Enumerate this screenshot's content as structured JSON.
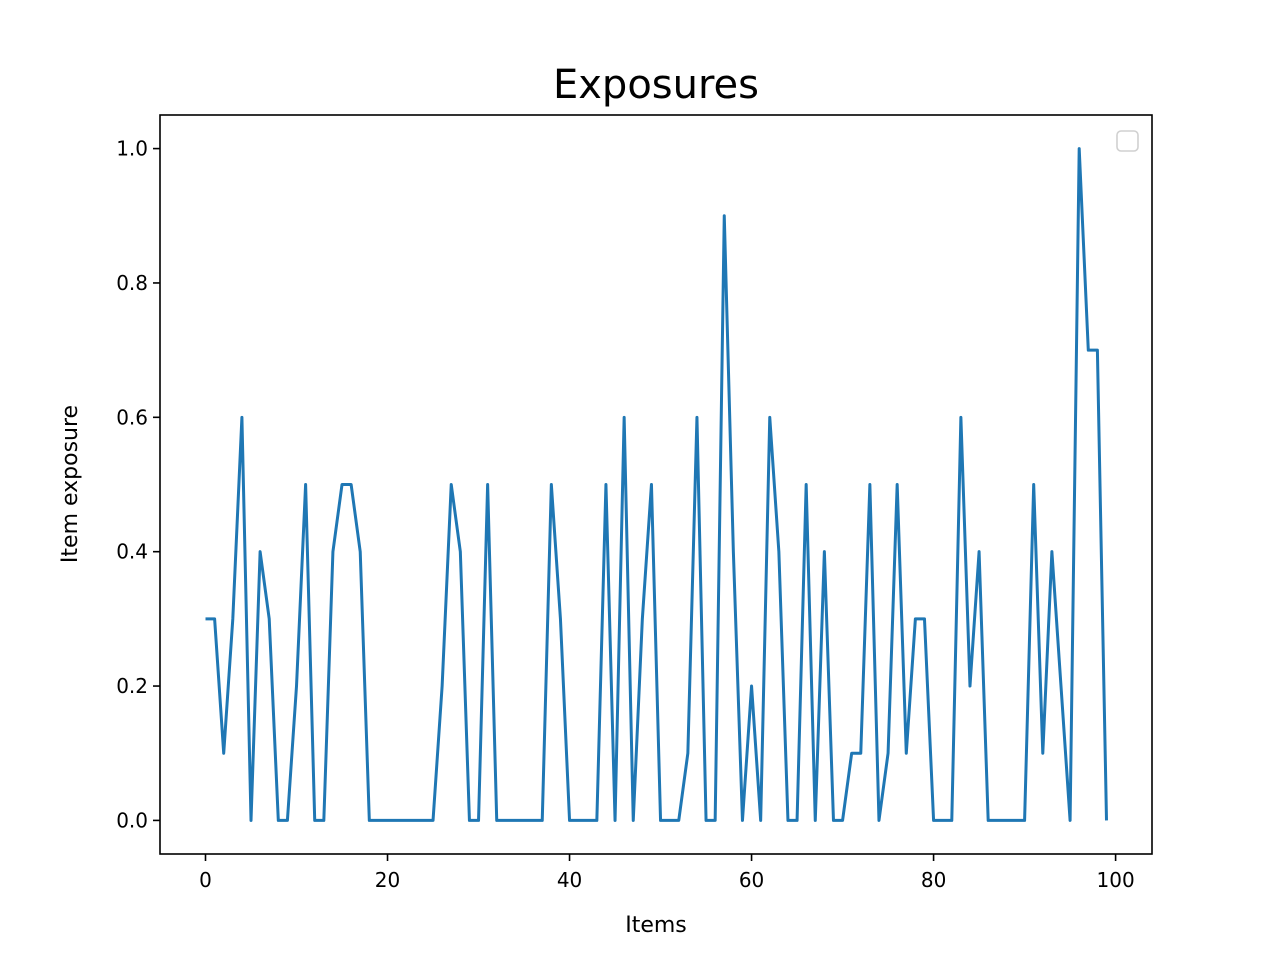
{
  "chart_data": {
    "type": "line",
    "title": "Exposures",
    "xlabel": "Items",
    "ylabel": "Item exposure",
    "xlim": [
      -5,
      104
    ],
    "ylim": [
      -0.05,
      1.05
    ],
    "xticks": [
      0,
      20,
      40,
      60,
      80,
      100
    ],
    "yticks": [
      0.0,
      0.2,
      0.4,
      0.6,
      0.8,
      1.0
    ],
    "xtick_labels": [
      "0",
      "20",
      "40",
      "60",
      "80",
      "100"
    ],
    "ytick_labels": [
      "0.0",
      "0.2",
      "0.4",
      "0.6",
      "0.8",
      "1.0"
    ],
    "grid": false,
    "legend": "upper-right",
    "colors": {
      "line": "#1f77b4"
    },
    "series": [
      {
        "x": [
          0,
          1,
          2,
          3,
          4,
          5,
          6,
          7,
          8,
          9,
          10,
          11,
          12,
          13,
          14,
          15,
          16,
          17,
          18,
          19,
          20,
          21,
          22,
          23,
          24,
          25,
          26,
          27,
          28,
          29,
          30,
          31,
          32,
          33,
          34,
          35,
          36,
          37,
          38,
          39,
          40,
          41,
          42,
          43,
          44,
          45,
          46,
          47,
          48,
          49,
          50,
          51,
          52,
          53,
          54,
          55,
          56,
          57,
          58,
          59,
          60,
          61,
          62,
          63,
          64,
          65,
          66,
          67,
          68,
          69,
          70,
          71,
          72,
          73,
          74,
          75,
          76,
          77,
          78,
          79,
          80,
          81,
          82,
          83,
          84,
          85,
          86,
          87,
          88,
          89,
          90,
          91,
          92,
          93,
          94,
          95,
          96,
          97,
          98,
          99
        ],
        "values": [
          0.3,
          0.3,
          0.1,
          0.3,
          0.6,
          0.0,
          0.4,
          0.3,
          0.0,
          0.0,
          0.2,
          0.5,
          0.0,
          0.0,
          0.4,
          0.5,
          0.5,
          0.4,
          0.0,
          0.0,
          0.0,
          0.0,
          0.0,
          0.0,
          0.0,
          0.0,
          0.2,
          0.5,
          0.4,
          0.0,
          0.0,
          0.5,
          0.0,
          0.0,
          0.0,
          0.0,
          0.0,
          0.0,
          0.5,
          0.3,
          0.0,
          0.0,
          0.0,
          0.0,
          0.5,
          0.0,
          0.6,
          0.0,
          0.3,
          0.5,
          0.0,
          0.0,
          0.0,
          0.1,
          0.6,
          0.0,
          0.0,
          0.9,
          0.4,
          0.0,
          0.2,
          0.0,
          0.6,
          0.4,
          0.0,
          0.0,
          0.5,
          0.0,
          0.4,
          0.0,
          0.0,
          0.1,
          0.1,
          0.5,
          0.0,
          0.1,
          0.5,
          0.1,
          0.3,
          0.3,
          0.0,
          0.0,
          0.0,
          0.6,
          0.2,
          0.4,
          0.0,
          0.0,
          0.0,
          0.0,
          0.0,
          0.5,
          0.1,
          0.4,
          0.2,
          0.0,
          1.0,
          0.7,
          0.7,
          0.0
        ]
      }
    ]
  }
}
